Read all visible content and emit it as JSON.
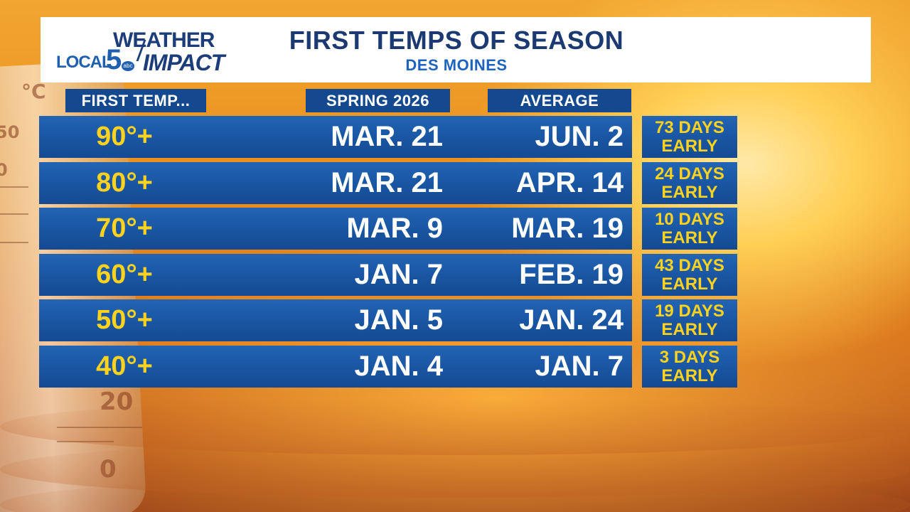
{
  "header": {
    "title": "FIRST TEMPS OF SEASON",
    "subtitle": "DES MOINES"
  },
  "logo": {
    "top": "WEATHER",
    "local": "LOCAL",
    "five": "5",
    "network": "abc",
    "impact": "IMPACT"
  },
  "columns": {
    "first_temp": "FIRST TEMP...",
    "spring": "SPRING 2026",
    "average": "AVERAGE"
  },
  "rows": [
    {
      "temp": "90°+",
      "spring": "MAR. 21",
      "average": "JUN. 2",
      "diff_top": "73 DAYS",
      "diff_bottom": "EARLY"
    },
    {
      "temp": "80°+",
      "spring": "MAR. 21",
      "average": "APR. 14",
      "diff_top": "24 DAYS",
      "diff_bottom": "EARLY"
    },
    {
      "temp": "70°+",
      "spring": "MAR. 9",
      "average": "MAR. 19",
      "diff_top": "10 DAYS",
      "diff_bottom": "EARLY"
    },
    {
      "temp": "60°+",
      "spring": "JAN. 7",
      "average": "FEB. 19",
      "diff_top": "43 DAYS",
      "diff_bottom": "EARLY"
    },
    {
      "temp": "50°+",
      "spring": "JAN. 5",
      "average": "JAN. 24",
      "diff_top": "19 DAYS",
      "diff_bottom": "EARLY"
    },
    {
      "temp": "40°+",
      "spring": "JAN. 4",
      "average": "JAN. 7",
      "diff_top": "3 DAYS",
      "diff_bottom": "EARLY"
    }
  ],
  "background": {
    "thermometer_labels": [
      "°C",
      "50",
      "0",
      "20",
      "0"
    ]
  },
  "colors": {
    "panel_blue": "#1a56a3",
    "header_blue": "#15498f",
    "value_yellow": "#ffd21e",
    "title_navy": "#1b3a72"
  }
}
